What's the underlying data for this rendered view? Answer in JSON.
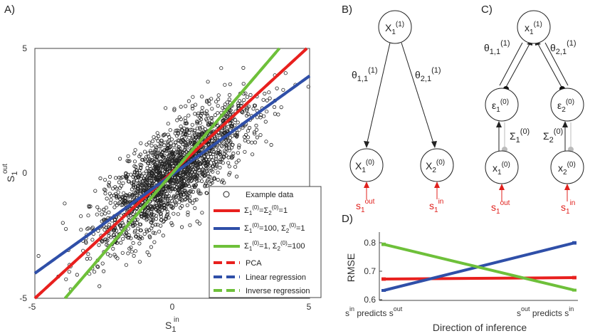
{
  "panels": {
    "a": {
      "label": "A)",
      "xlabel_main": "S",
      "xlabel_sub": "1",
      "xlabel_sup": "in",
      "ylabel_main": "S",
      "ylabel_sub": "1",
      "ylabel_sup": "out",
      "ticks_x": [
        "-5",
        "0",
        "5"
      ],
      "ticks_y": [
        "5",
        "0",
        "-5"
      ]
    },
    "b": {
      "label": "B)",
      "nodes": {
        "top": {
          "main": "X",
          "sub": "1",
          "sup": "(1)"
        },
        "left": {
          "main": "X",
          "sub": "1",
          "sup": "(0)"
        },
        "right": {
          "main": "X",
          "sub": "2",
          "sup": "(0)"
        }
      },
      "edges": {
        "left": {
          "main": "θ",
          "sub": "1,1",
          "sup": "(1)"
        },
        "right": {
          "main": "θ",
          "sub": "2,1",
          "sup": "(1)"
        }
      },
      "inputs": {
        "left": {
          "main": "s",
          "sub": "1",
          "sup": "out"
        },
        "right": {
          "main": "s",
          "sub": "1",
          "sup": "in"
        }
      }
    },
    "c": {
      "label": "C)",
      "nodes": {
        "top": {
          "main": "x",
          "sub": "1",
          "sup": "(1)"
        },
        "err_left": {
          "main": "ε",
          "sub": "1",
          "sup": "(0)"
        },
        "err_right": {
          "main": "ε",
          "sub": "2",
          "sup": "(0)"
        },
        "left": {
          "main": "x",
          "sub": "1",
          "sup": "(0)"
        },
        "right": {
          "main": "x",
          "sub": "2",
          "sup": "(0)"
        }
      },
      "edges": {
        "left": {
          "main": "θ",
          "sub": "1,1",
          "sup": "(1)"
        },
        "right": {
          "main": "θ",
          "sub": "2,1",
          "sup": "(1)"
        },
        "sigma_left": {
          "main": "Σ",
          "sub": "1",
          "sup": "(0)"
        },
        "sigma_right": {
          "main": "Σ",
          "sub": "2",
          "sup": "(0)"
        }
      },
      "inputs": {
        "left": {
          "main": "s",
          "sub": "1",
          "sup": "out"
        },
        "right": {
          "main": "s",
          "sub": "1",
          "sup": "in"
        }
      }
    },
    "d": {
      "label": "D)",
      "ylabel": "RMSE",
      "xlabel": "Direction of inference",
      "ticks_y": [
        "0.8",
        "0.7",
        "0.6"
      ],
      "cat_left": {
        "a": "s",
        "a_sup": "in",
        "b": " predicts s",
        "b_sup": "out"
      },
      "cat_right": {
        "a": "s",
        "a_sup": "out",
        "b": " predicts s",
        "b_sup": "in"
      }
    }
  },
  "legend": [
    {
      "kind": "marker",
      "text": "Example data"
    },
    {
      "kind": "solid",
      "color": "#e8201e",
      "parts": [
        [
          "Σ",
          "1",
          "(0)"
        ],
        [
          "=",
          null,
          null
        ],
        [
          "Σ",
          "2",
          "(0)"
        ],
        [
          "=1",
          null,
          null
        ]
      ]
    },
    {
      "kind": "solid",
      "color": "#2f4fa8",
      "parts": [
        [
          "Σ",
          "1",
          "(0)"
        ],
        [
          "=100, ",
          null,
          null
        ],
        [
          "Σ",
          "2",
          "(0)"
        ],
        [
          "=1",
          null,
          null
        ]
      ]
    },
    {
      "kind": "solid",
      "color": "#6ec03a",
      "parts": [
        [
          "Σ",
          "1",
          "(0)"
        ],
        [
          "=1, ",
          null,
          null
        ],
        [
          "Σ",
          "2",
          "(0)"
        ],
        [
          "=100",
          null,
          null
        ]
      ]
    },
    {
      "kind": "dashed",
      "color": "#e8201e",
      "text": "PCA"
    },
    {
      "kind": "dashed",
      "color": "#2f4fa8",
      "text": "Linear regression"
    },
    {
      "kind": "dashed",
      "color": "#6ec03a",
      "text": "Inverse regression"
    }
  ],
  "chart_data": [
    {
      "type": "scatter",
      "title": "",
      "xlabel": "S1 in",
      "ylabel": "S1 out",
      "xlim": [
        -5,
        5
      ],
      "ylim": [
        -5,
        5
      ],
      "scatter": {
        "name": "Example data",
        "n": 2000,
        "std": 1.4,
        "correlation": 0.8
      },
      "lines": [
        {
          "name": "Σ1(0)=Σ2(0)=1",
          "color": "#e8201e",
          "style": "solid",
          "x": [
            -5,
            4.9
          ],
          "y": [
            -5,
            5
          ]
        },
        {
          "name": "PCA",
          "color": "#e8201e",
          "style": "dashed",
          "x": [
            -5,
            4.9
          ],
          "y": [
            -5,
            5
          ]
        },
        {
          "name": "Σ1(0)=100, Σ2(0)=1",
          "color": "#2f4fa8",
          "style": "solid",
          "x": [
            -5,
            5
          ],
          "y": [
            -4,
            3.9
          ]
        },
        {
          "name": "Linear regression",
          "color": "#2f4fa8",
          "style": "dashed",
          "x": [
            -5,
            5
          ],
          "y": [
            -4,
            3.9
          ]
        },
        {
          "name": "Σ1(0)=1, Σ2(0)=100",
          "color": "#6ec03a",
          "style": "solid",
          "x": [
            -3.9,
            3.9
          ],
          "y": [
            -5,
            5
          ]
        },
        {
          "name": "Inverse regression",
          "color": "#6ec03a",
          "style": "dashed",
          "x": [
            -3.9,
            3.9
          ],
          "y": [
            -5,
            5
          ]
        }
      ],
      "grid": false,
      "legend": "bottom-right"
    },
    {
      "type": "line",
      "title": "",
      "xlabel": "Direction of inference",
      "ylabel": "RMSE",
      "categories": [
        "s_in predicts s_out",
        "s_out predicts s_in"
      ],
      "ylim": [
        0.6,
        0.85
      ],
      "series": [
        {
          "name": "Σ1(0)=Σ2(0)=1",
          "color": "#e8201e",
          "values": [
            0.675,
            0.68
          ],
          "err": [
            0.006,
            0.006
          ]
        },
        {
          "name": "Σ1(0)=100, Σ2(0)=1",
          "color": "#2f4fa8",
          "values": [
            0.635,
            0.802
          ],
          "err": [
            0.005,
            0.006
          ]
        },
        {
          "name": "Σ1(0)=1, Σ2(0)=100",
          "color": "#6ec03a",
          "values": [
            0.797,
            0.636
          ],
          "err": [
            0.006,
            0.005
          ]
        }
      ],
      "grid": false
    }
  ]
}
